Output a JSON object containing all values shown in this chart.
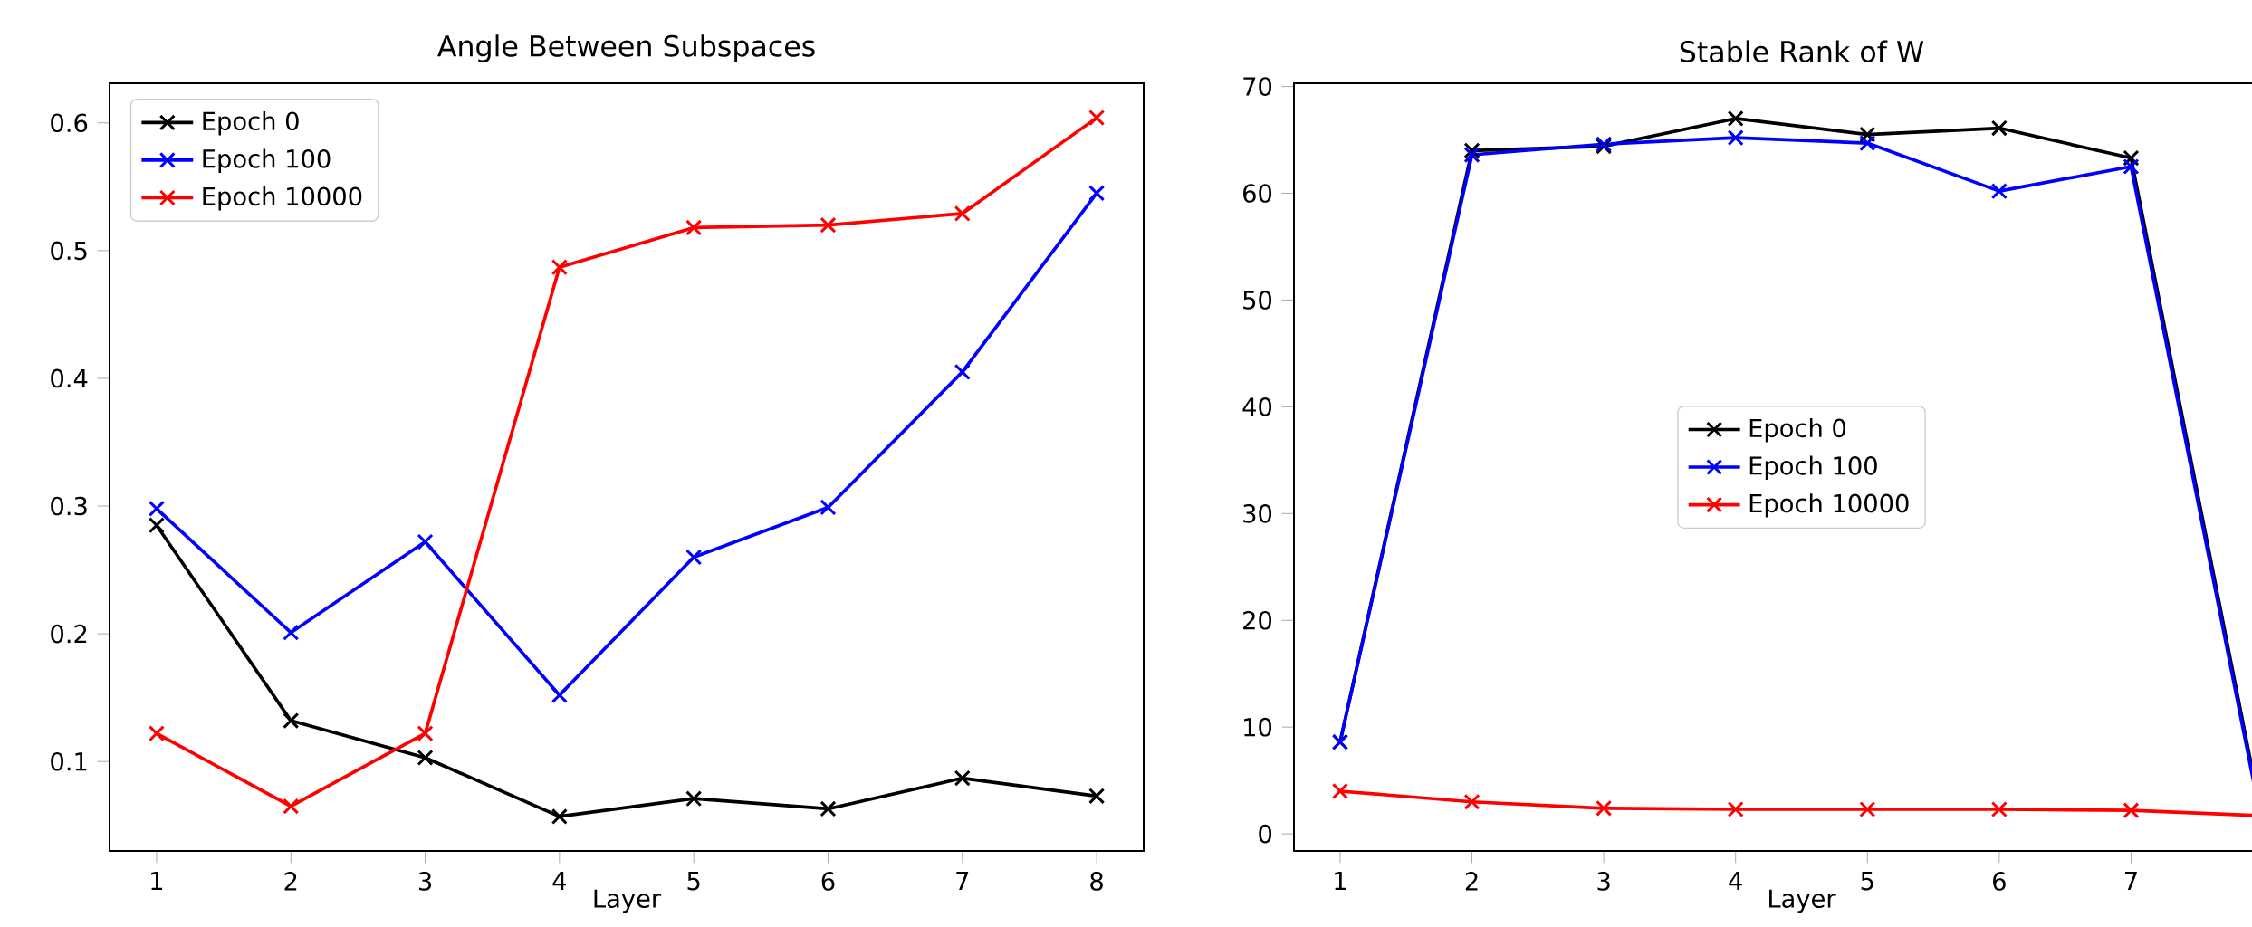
{
  "chart_data": [
    {
      "type": "line",
      "title": "Angle Between Subspaces",
      "xlabel": "Layer",
      "x": [
        1,
        2,
        3,
        4,
        5,
        6,
        7,
        8
      ],
      "xlim": [
        0.65,
        8.35
      ],
      "xticks": [
        1,
        2,
        3,
        4,
        5,
        6,
        7,
        8
      ],
      "ylim": [
        0.03,
        0.631
      ],
      "yticks": [
        0.1,
        0.2,
        0.3,
        0.4,
        0.5,
        0.6
      ],
      "marker": "cross",
      "legend": "top left",
      "grid": false,
      "series": [
        {
          "name": "Epoch 0",
          "color": "#000000",
          "values": [
            0.285,
            0.132,
            0.103,
            0.057,
            0.071,
            0.063,
            0.087,
            0.073
          ]
        },
        {
          "name": "Epoch 100",
          "color": "#0000ff",
          "values": [
            0.298,
            0.201,
            0.272,
            0.152,
            0.26,
            0.299,
            0.405,
            0.545
          ]
        },
        {
          "name": "Epoch 10000",
          "color": "#ff0000",
          "values": [
            0.122,
            0.065,
            0.122,
            0.487,
            0.518,
            0.52,
            0.529,
            0.604
          ]
        }
      ]
    },
    {
      "type": "line",
      "title": "Stable Rank of W",
      "xlabel": "Layer",
      "x": [
        1,
        2,
        3,
        4,
        5,
        6,
        7,
        8
      ],
      "xlim": [
        0.65,
        8.35
      ],
      "xticks": [
        1,
        2,
        3,
        4,
        5,
        6,
        7
      ],
      "ylim": [
        -1.6,
        70.3
      ],
      "yticks": [
        0,
        10,
        20,
        30,
        40,
        50,
        60,
        70
      ],
      "marker": "cross",
      "legend": "center",
      "grid": false,
      "series": [
        {
          "name": "Epoch 0",
          "color": "#000000",
          "values": [
            8.6,
            64.0,
            64.4,
            67.0,
            65.5,
            66.1,
            63.3,
            1.0
          ]
        },
        {
          "name": "Epoch 100",
          "color": "#0000ff",
          "values": [
            8.6,
            63.6,
            64.6,
            65.2,
            64.7,
            60.2,
            62.5,
            0.5
          ]
        },
        {
          "name": "Epoch 10000",
          "color": "#ff0000",
          "values": [
            4.0,
            3.0,
            2.4,
            2.3,
            2.3,
            2.3,
            2.2,
            1.7
          ]
        }
      ]
    }
  ]
}
